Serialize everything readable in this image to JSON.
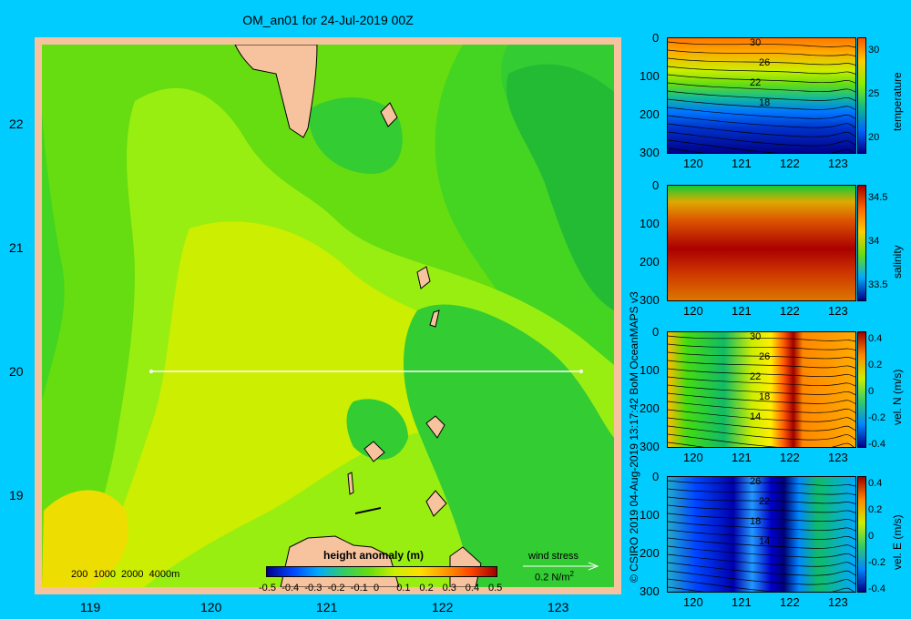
{
  "map": {
    "title": "OM_an01 for 24-Jul-2019 00Z",
    "lon_ticks": [
      "119",
      "120",
      "121",
      "122",
      "123"
    ],
    "lat_ticks": [
      "22",
      "21",
      "20",
      "19"
    ],
    "depth_legend": "200  1000  2000  4000m",
    "colorbar_title": "height anomaly (m)",
    "colorbar_ticks": [
      "-0.5",
      "-0.4",
      "-0.3",
      "-0.2",
      "-0.1",
      "0",
      "0.1",
      "0.2",
      "0.3",
      "0.4",
      "0.5"
    ],
    "wind_label": "wind stress",
    "wind_scale": "0.2 N/m",
    "wind_scale_sup": "2"
  },
  "credit": "© CSIRO 2019  04-Aug-2019 13:17:42 BoM OceanMAPS v3",
  "colors": {
    "background": "#00ccff",
    "land": "#f7c39e",
    "accent_red": "#a00000",
    "accent_blue": "#00008b"
  },
  "chart_data": [
    {
      "type": "heatmap",
      "title": "OM_an01 for 24-Jul-2019 00Z",
      "variable": "height anomaly (m)",
      "x_ticks": [
        119,
        120,
        121,
        122,
        123
      ],
      "y_ticks": [
        22,
        21,
        20,
        19
      ],
      "xlim": [
        118.5,
        123.5
      ],
      "ylim": [
        18.3,
        22.7
      ],
      "color_range": [
        -0.5,
        0.5
      ],
      "section_line": {
        "lat": 20,
        "lon_start": 119.5,
        "lon_end": 123.2
      }
    },
    {
      "type": "heatmap",
      "variable": "temperature",
      "x_ticks": [
        120,
        121,
        122,
        123
      ],
      "y_ticks": [
        0,
        100,
        200,
        300
      ],
      "colorbar_ticks": [
        30,
        25,
        20
      ],
      "contour_labels": [
        "30",
        "26",
        "22",
        "18"
      ]
    },
    {
      "type": "heatmap",
      "variable": "salinity",
      "x_ticks": [
        120,
        121,
        122,
        123
      ],
      "y_ticks": [
        0,
        100,
        200,
        300
      ],
      "colorbar_ticks": [
        34.5,
        34,
        33.5
      ],
      "contour_labels": []
    },
    {
      "type": "heatmap",
      "variable": "vel. N (m/s)",
      "x_ticks": [
        120,
        121,
        122,
        123
      ],
      "y_ticks": [
        0,
        100,
        200,
        300
      ],
      "colorbar_ticks": [
        0.4,
        0.2,
        0,
        -0.2,
        -0.4
      ],
      "contour_labels": [
        "30",
        "26",
        "22",
        "18",
        "14"
      ]
    },
    {
      "type": "heatmap",
      "variable": "vel. E (m/s)",
      "x_ticks": [
        120,
        121,
        122,
        123
      ],
      "y_ticks": [
        0,
        100,
        200,
        300
      ],
      "colorbar_ticks": [
        0.4,
        0.2,
        0,
        -0.2,
        -0.4
      ],
      "contour_labels": [
        "26",
        "22",
        "18",
        "14"
      ]
    }
  ]
}
